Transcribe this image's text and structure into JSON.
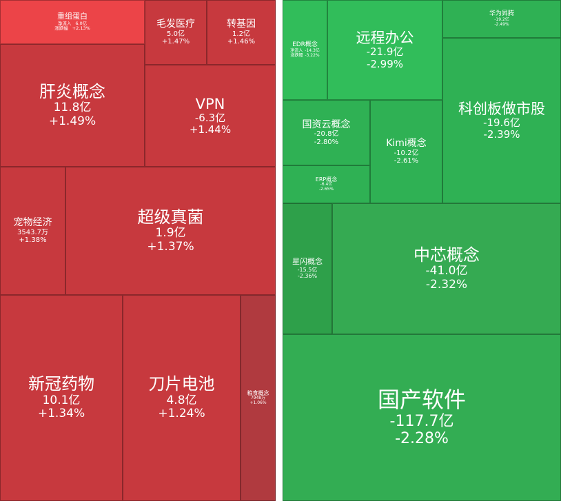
{
  "colors": {
    "up": "#c7393e",
    "up_bright": "#ec4448",
    "down": "#2fb154",
    "divider": "#ffffff"
  },
  "up_panel": {
    "chongzu": {
      "name": "重组蛋白",
      "inflow_label": "净流入",
      "inflow": "6.0亿",
      "change_label": "涨跌幅",
      "change": "+2.13%"
    },
    "maofa": {
      "name": "毛发医疗",
      "flow": "5.0亿",
      "change": "+1.47%"
    },
    "zhuanjiyin": {
      "name": "转基因",
      "flow": "1.2亿",
      "change": "+1.46%"
    },
    "ganyan": {
      "name": "肝炎概念",
      "flow": "11.8亿",
      "change": "+1.49%"
    },
    "vpn": {
      "name": "VPN",
      "flow": "-6.3亿",
      "change": "+1.44%"
    },
    "chongwu": {
      "name": "宠物经济",
      "flow": "3543.7万",
      "change": "+1.38%"
    },
    "chaoji": {
      "name": "超级真菌",
      "flow": "1.9亿",
      "change": "+1.37%"
    },
    "xinguan": {
      "name": "新冠药物",
      "flow": "10.1亿",
      "change": "+1.34%"
    },
    "daopian": {
      "name": "刀片电池",
      "flow": "4.8亿",
      "change": "+1.24%"
    },
    "liangshi": {
      "name": "粮食概念",
      "flow": "7948万",
      "change": "+1.06%"
    }
  },
  "down_panel": {
    "edr": {
      "name": "EDR概念",
      "inflow_label": "净流入",
      "inflow": "-14.3亿",
      "change_label": "涨跌幅",
      "change": "-3.22%"
    },
    "yuancheng": {
      "name": "远程办公",
      "flow": "-21.9亿",
      "change": "-2.99%"
    },
    "huawei": {
      "name": "华为昇腾",
      "flow": "-19.2亿",
      "change": "-2.49%"
    },
    "kechuang": {
      "name": "科创板做市股",
      "flow": "-19.6亿",
      "change": "-2.39%"
    },
    "guoziyun": {
      "name": "国资云概念",
      "flow": "-20.8亿",
      "change": "-2.80%"
    },
    "kimi": {
      "name": "Kimi概念",
      "flow": "-10.2亿",
      "change": "-2.61%"
    },
    "erp": {
      "name": "ERP概念",
      "flow": "-6.4亿",
      "change": "-2.65%"
    },
    "xingshan": {
      "name": "星闪概念",
      "flow": "-15.5亿",
      "change": "-2.36%"
    },
    "zhongxin": {
      "name": "中芯概念",
      "flow": "-41.0亿",
      "change": "-2.32%"
    },
    "guochan": {
      "name": "国产软件",
      "flow": "-117.7亿",
      "change": "-2.28%"
    }
  }
}
